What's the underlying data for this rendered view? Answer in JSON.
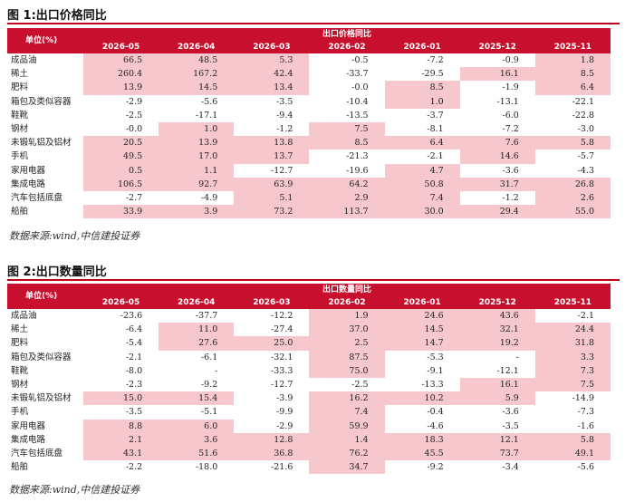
{
  "figure1": {
    "title": "图 1:出口价格同比",
    "unit_label": "单位(%)",
    "group_label": "出口价格同比",
    "columns": [
      "2026-05",
      "2026-04",
      "2026-03",
      "2026-02",
      "2026-01",
      "2025-12",
      "2025-11"
    ],
    "rows": [
      {
        "label": "成品油",
        "values": [
          "66.5",
          "48.5",
          "5.3",
          "-0.5",
          "-7.2",
          "-0.9",
          "1.8"
        ],
        "highlight": [
          true,
          true,
          true,
          false,
          false,
          false,
          true
        ]
      },
      {
        "label": "稀土",
        "values": [
          "260.4",
          "167.2",
          "42.4",
          "-33.7",
          "-29.5",
          "16.1",
          "8.5"
        ],
        "highlight": [
          true,
          true,
          true,
          false,
          false,
          true,
          true
        ]
      },
      {
        "label": "肥料",
        "values": [
          "13.9",
          "14.5",
          "13.4",
          "-0.0",
          "8.5",
          "-1.9",
          "6.4"
        ],
        "highlight": [
          true,
          true,
          true,
          false,
          true,
          false,
          true
        ]
      },
      {
        "label": "箱包及类似容器",
        "values": [
          "-2.9",
          "-5.6",
          "-3.5",
          "-10.4",
          "1.0",
          "-13.1",
          "-22.1"
        ],
        "highlight": [
          false,
          false,
          false,
          false,
          true,
          false,
          false
        ]
      },
      {
        "label": "鞋靴",
        "values": [
          "-2.5",
          "-17.1",
          "-9.4",
          "-13.5",
          "-3.7",
          "-6.0",
          "-22.8"
        ],
        "highlight": [
          false,
          false,
          false,
          false,
          false,
          false,
          false
        ]
      },
      {
        "label": "钢材",
        "values": [
          "-0.0",
          "1.0",
          "-1.2",
          "7.5",
          "-8.1",
          "-7.2",
          "-3.0"
        ],
        "highlight": [
          false,
          true,
          false,
          true,
          false,
          false,
          false
        ]
      },
      {
        "label": "未锻轧铝及铝材",
        "values": [
          "20.5",
          "13.9",
          "13.8",
          "8.5",
          "6.4",
          "7.6",
          "5.8"
        ],
        "highlight": [
          true,
          true,
          true,
          true,
          true,
          true,
          true
        ]
      },
      {
        "label": "手机",
        "values": [
          "49.5",
          "17.0",
          "13.7",
          "-21.3",
          "-2.1",
          "14.6",
          "-5.7"
        ],
        "highlight": [
          true,
          true,
          true,
          false,
          false,
          true,
          false
        ]
      },
      {
        "label": "家用电器",
        "values": [
          "0.5",
          "1.1",
          "-12.7",
          "-19.6",
          "4.7",
          "-3.6",
          "-4.3"
        ],
        "highlight": [
          true,
          true,
          false,
          false,
          true,
          false,
          false
        ]
      },
      {
        "label": "集成电路",
        "values": [
          "106.5",
          "92.7",
          "63.9",
          "64.2",
          "50.8",
          "31.7",
          "26.8"
        ],
        "highlight": [
          true,
          true,
          true,
          true,
          true,
          true,
          true
        ]
      },
      {
        "label": "汽车包括底盘",
        "values": [
          "-2.7",
          "-4.9",
          "5.1",
          "2.9",
          "7.4",
          "-1.2",
          "2.6"
        ],
        "highlight": [
          false,
          false,
          true,
          true,
          true,
          false,
          true
        ]
      },
      {
        "label": "船舶",
        "values": [
          "33.9",
          "3.9",
          "73.2",
          "113.7",
          "30.0",
          "29.4",
          "55.0"
        ],
        "highlight": [
          true,
          true,
          true,
          true,
          true,
          true,
          true
        ]
      }
    ],
    "source": "数据来源:wind,中信建投证券"
  },
  "figure2": {
    "title": "图 2:出口数量同比",
    "unit_label": "单位(%)",
    "group_label": "出口数量同比",
    "columns": [
      "2026-05",
      "2026-04",
      "2026-03",
      "2026-02",
      "2026-01",
      "2025-12",
      "2025-11"
    ],
    "rows": [
      {
        "label": "成品油",
        "values": [
          "-23.6",
          "-37.7",
          "-12.2",
          "1.9",
          "24.6",
          "43.6",
          "-2.1"
        ],
        "highlight": [
          false,
          false,
          false,
          true,
          true,
          true,
          false
        ]
      },
      {
        "label": "稀土",
        "values": [
          "-6.4",
          "11.0",
          "-27.4",
          "37.0",
          "14.5",
          "32.1",
          "24.4"
        ],
        "highlight": [
          false,
          true,
          false,
          true,
          true,
          true,
          true
        ]
      },
      {
        "label": "肥料",
        "values": [
          "-5.4",
          "27.6",
          "25.0",
          "2.5",
          "14.7",
          "19.2",
          "31.8"
        ],
        "highlight": [
          false,
          true,
          true,
          true,
          true,
          true,
          true
        ]
      },
      {
        "label": "箱包及类似容器",
        "values": [
          "-2.1",
          "-6.1",
          "-32.1",
          "87.5",
          "-5.3",
          "-",
          "3.3"
        ],
        "highlight": [
          false,
          false,
          false,
          true,
          false,
          false,
          true
        ]
      },
      {
        "label": "鞋靴",
        "values": [
          "-8.0",
          "-",
          "-33.3",
          "75.0",
          "-9.1",
          "-12.1",
          "7.3"
        ],
        "highlight": [
          false,
          false,
          false,
          true,
          false,
          false,
          true
        ]
      },
      {
        "label": "钢材",
        "values": [
          "-2.3",
          "-9.2",
          "-12.7",
          "-2.5",
          "-13.3",
          "16.1",
          "7.5"
        ],
        "highlight": [
          false,
          false,
          false,
          false,
          false,
          true,
          true
        ]
      },
      {
        "label": "未锻轧铝及铝材",
        "values": [
          "15.0",
          "15.4",
          "-3.9",
          "16.2",
          "10.2",
          "5.9",
          "-14.9"
        ],
        "highlight": [
          true,
          true,
          false,
          true,
          true,
          true,
          false
        ]
      },
      {
        "label": "手机",
        "values": [
          "-3.5",
          "-5.1",
          "-9.9",
          "7.4",
          "-0.4",
          "-3.6",
          "-7.3"
        ],
        "highlight": [
          false,
          false,
          false,
          true,
          false,
          false,
          false
        ]
      },
      {
        "label": "家用电器",
        "values": [
          "8.8",
          "6.0",
          "-2.9",
          "59.9",
          "-4.6",
          "-3.5",
          "-1.6"
        ],
        "highlight": [
          true,
          true,
          false,
          true,
          false,
          false,
          false
        ]
      },
      {
        "label": "集成电路",
        "values": [
          "2.1",
          "3.6",
          "12.8",
          "1.4",
          "18.3",
          "12.1",
          "5.8"
        ],
        "highlight": [
          true,
          true,
          true,
          true,
          true,
          true,
          true
        ]
      },
      {
        "label": "汽车包括底盘",
        "values": [
          "43.1",
          "51.6",
          "36.8",
          "76.2",
          "45.5",
          "73.7",
          "49.1"
        ],
        "highlight": [
          true,
          true,
          true,
          true,
          true,
          true,
          true
        ]
      },
      {
        "label": "船舶",
        "values": [
          "-2.2",
          "-18.0",
          "-21.6",
          "34.7",
          "-9.2",
          "-3.4",
          "-5.6"
        ],
        "highlight": [
          false,
          false,
          false,
          true,
          false,
          false,
          false
        ]
      }
    ],
    "source": "数据来源:wind,中信建投证券"
  },
  "colors": {
    "header_bg": "#c8102e",
    "highlight_bg": "#f6c7cd",
    "rule": "#c0001a"
  }
}
